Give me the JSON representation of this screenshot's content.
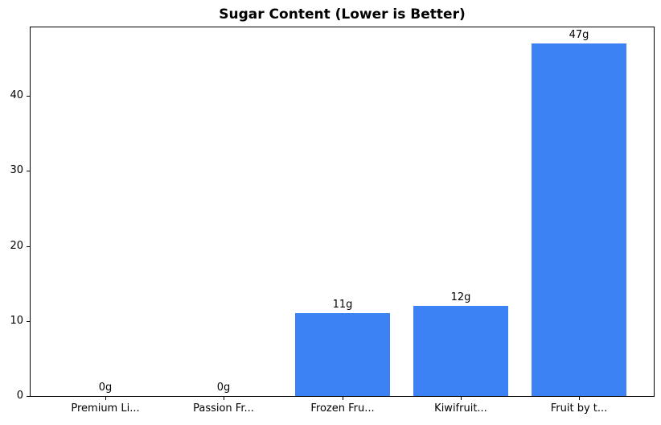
{
  "chart_data": {
    "type": "bar",
    "title": "Sugar Content (Lower is Better)",
    "categories": [
      "Premium Li...",
      "Passion Fr...",
      "Frozen Fru...",
      "Kiwifruit...",
      "Fruit by t..."
    ],
    "values": [
      0,
      0,
      11,
      12,
      47
    ],
    "value_labels": [
      "0g",
      "0g",
      "11g",
      "12g",
      "47g"
    ],
    "xlabel": "",
    "ylabel": "",
    "ylim": [
      0,
      49.35
    ],
    "yticks": [
      0,
      10,
      20,
      30,
      40
    ],
    "bar_color": "#3d82f4",
    "axis_color": "#000000",
    "background_color": "#ffffff",
    "grid": false,
    "legend": null
  }
}
